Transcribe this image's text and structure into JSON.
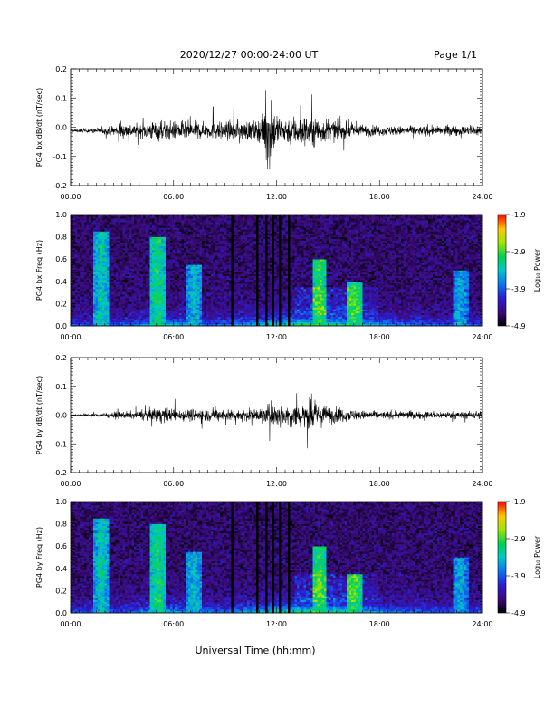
{
  "header": {
    "title": "2020/12/27  00:00-24:00 UT",
    "page": "Page 1/1"
  },
  "xaxis": {
    "label": "Universal Time (hh:mm)",
    "ticks": [
      "00:00",
      "06:00",
      "12:00",
      "18:00",
      "24:00"
    ],
    "range_hours": [
      0,
      24
    ]
  },
  "colorbar": {
    "label": "Log₁₀ Power",
    "ticks": [
      "-1.9",
      "-2.9",
      "-3.9",
      "-4.9"
    ],
    "tick_values": [
      -1.9,
      -2.9,
      -3.9,
      -4.9
    ],
    "range": [
      -4.9,
      -1.9
    ]
  },
  "chart_data": [
    {
      "type": "line",
      "ylabel": "PG4 bx dB/dt (nT/sec)",
      "ylim": [
        -0.2,
        0.2
      ],
      "yticks": [
        "0.2",
        "0.1",
        "0.0",
        "-0.1",
        "-0.2"
      ],
      "ytick_values": [
        0.2,
        0.1,
        0.0,
        -0.1,
        -0.2
      ],
      "x_hours": [
        0,
        1,
        2,
        3,
        4,
        5,
        6,
        7,
        8,
        9,
        10,
        11,
        11.6,
        12,
        12.5,
        13,
        14,
        15,
        16,
        17,
        18,
        19,
        20,
        21,
        22,
        23,
        24
      ],
      "amplitude": [
        0.005,
        0.006,
        0.01,
        0.025,
        0.02,
        0.035,
        0.03,
        0.03,
        0.025,
        0.03,
        0.03,
        0.035,
        0.09,
        0.06,
        0.04,
        0.05,
        0.05,
        0.035,
        0.025,
        0.02,
        0.015,
        0.015,
        0.015,
        0.015,
        0.015,
        0.015,
        0.02
      ],
      "offset": -0.012,
      "spikes": [
        {
          "x": 11.7,
          "y": 0.09
        },
        {
          "x": 11.6,
          "y": -0.145
        },
        {
          "x": 8.3,
          "y": 0.07
        }
      ]
    },
    {
      "type": "heatmap",
      "ylabel": "PG4 bx Freq (Hz)",
      "ylim": [
        0.0,
        1.0
      ],
      "yticks": [
        "1.0",
        "0.8",
        "0.6",
        "0.4",
        "0.2",
        "0.0"
      ],
      "ytick_values": [
        1.0,
        0.8,
        0.6,
        0.4,
        0.2,
        0.0
      ],
      "zlim": [
        -4.9,
        -1.9
      ],
      "data_gaps_hours": [
        [
          9.4,
          9.55
        ],
        [
          10.8,
          10.95
        ],
        [
          11.4,
          11.5
        ],
        [
          11.75,
          11.85
        ],
        [
          12.15,
          12.3
        ],
        [
          12.6,
          12.75
        ]
      ],
      "features": [
        {
          "x": 1.8,
          "f_max": 0.85,
          "level": -3.3
        },
        {
          "x": 5.1,
          "f_max": 0.8,
          "level": -3.1
        },
        {
          "x": 7.2,
          "f_max": 0.55,
          "level": -3.4
        },
        {
          "x": 14.5,
          "f_max": 0.6,
          "level": -3.0
        },
        {
          "x": 16.5,
          "f_max": 0.4,
          "level": -3.0
        },
        {
          "x": 22.7,
          "f_max": 0.5,
          "level": -3.5
        }
      ]
    },
    {
      "type": "line",
      "ylabel": "PG4 by dB/dt (nT/sec)",
      "ylim": [
        -0.2,
        0.2
      ],
      "yticks": [
        "0.2",
        "0.1",
        "0.0",
        "-0.1",
        "-0.2"
      ],
      "ytick_values": [
        0.2,
        0.1,
        0.0,
        -0.1,
        -0.2
      ],
      "x_hours": [
        0,
        1,
        2,
        3,
        4,
        5,
        6,
        7,
        8,
        9,
        10,
        11,
        11.6,
        12,
        12.5,
        13,
        14,
        15,
        16,
        17,
        18,
        19,
        20,
        21,
        22,
        23,
        24
      ],
      "amplitude": [
        0.003,
        0.004,
        0.008,
        0.012,
        0.012,
        0.025,
        0.02,
        0.02,
        0.02,
        0.02,
        0.02,
        0.02,
        0.04,
        0.035,
        0.03,
        0.04,
        0.045,
        0.03,
        0.02,
        0.015,
        0.012,
        0.012,
        0.012,
        0.012,
        0.012,
        0.012,
        0.015
      ],
      "offset": 0.0,
      "spikes": [
        {
          "x": 11.6,
          "y": -0.09
        },
        {
          "x": 11.7,
          "y": 0.05
        },
        {
          "x": 14.0,
          "y": 0.055
        }
      ]
    },
    {
      "type": "heatmap",
      "ylabel": "PG4 by Freq (Hz)",
      "ylim": [
        0.0,
        1.0
      ],
      "yticks": [
        "1.0",
        "0.8",
        "0.6",
        "0.4",
        "0.2",
        "0.0"
      ],
      "ytick_values": [
        1.0,
        0.8,
        0.6,
        0.4,
        0.2,
        0.0
      ],
      "zlim": [
        -4.9,
        -1.9
      ],
      "data_gaps_hours": [
        [
          9.4,
          9.55
        ],
        [
          10.8,
          10.95
        ],
        [
          11.4,
          11.5
        ],
        [
          11.75,
          11.85
        ],
        [
          12.15,
          12.3
        ],
        [
          12.6,
          12.75
        ]
      ],
      "features": [
        {
          "x": 1.8,
          "f_max": 0.85,
          "level": -3.3
        },
        {
          "x": 5.1,
          "f_max": 0.8,
          "level": -3.1
        },
        {
          "x": 7.2,
          "f_max": 0.55,
          "level": -3.4
        },
        {
          "x": 14.5,
          "f_max": 0.6,
          "level": -3.0
        },
        {
          "x": 16.5,
          "f_max": 0.35,
          "level": -3.0
        },
        {
          "x": 22.7,
          "f_max": 0.5,
          "level": -3.5
        }
      ]
    }
  ]
}
